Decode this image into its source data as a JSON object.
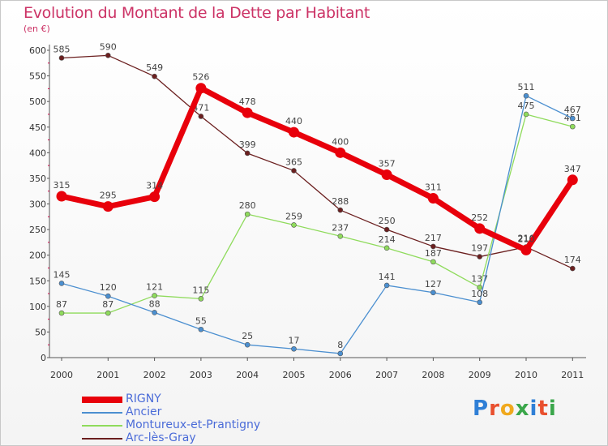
{
  "chart_data": {
    "type": "line",
    "title": "Evolution du Montant de la Dette par Habitant",
    "unit": "(en €)",
    "x": [
      "2000",
      "2001",
      "2002",
      "2003",
      "2004",
      "2005",
      "2006",
      "2007",
      "2008",
      "2009",
      "2010",
      "2011"
    ],
    "ylim": [
      0,
      600
    ],
    "yticks": [
      0,
      50,
      100,
      150,
      200,
      250,
      300,
      350,
      400,
      450,
      500,
      550,
      600
    ],
    "grid": false,
    "legend_position": "bottom-left",
    "series": [
      {
        "name": "RIGNY",
        "color": "#e8000b",
        "values": [
          315,
          295,
          314,
          526,
          478,
          440,
          400,
          357,
          311,
          252,
          210,
          347
        ]
      },
      {
        "name": "Ancier",
        "color": "#4b8fd0",
        "values": [
          145,
          120,
          88,
          55,
          25,
          17,
          8,
          141,
          127,
          108,
          511,
          467
        ]
      },
      {
        "name": "Montureux-et-Prantigny",
        "color": "#8fdb5c",
        "values": [
          87,
          87,
          121,
          115,
          280,
          259,
          237,
          214,
          187,
          137,
          475,
          451
        ]
      },
      {
        "name": "Arc-lès-Gray",
        "color": "#6b1f1f",
        "values": [
          585,
          590,
          549,
          471,
          399,
          365,
          288,
          250,
          217,
          197,
          216,
          174
        ]
      }
    ]
  },
  "logo": {
    "text": "Proxiti"
  }
}
